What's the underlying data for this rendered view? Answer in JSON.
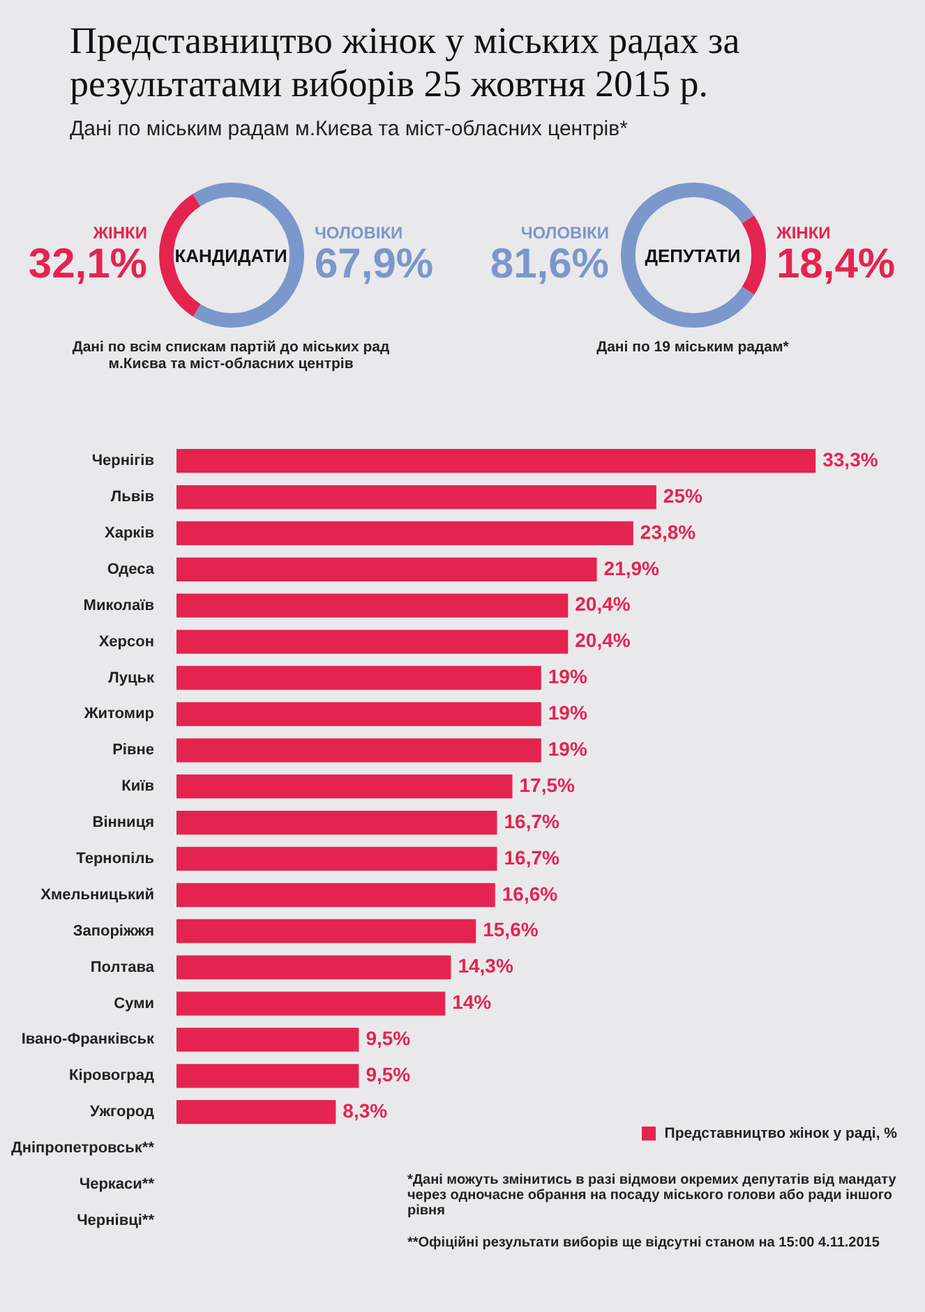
{
  "chart_data": [
    {
      "type": "donut",
      "title": "КАНДИДАТИ",
      "categories": [
        "ЖІНКИ",
        "ЧОЛОВІКИ"
      ],
      "values": [
        32.1,
        67.9
      ],
      "colors": [
        "#e5234f",
        "#7b97cc"
      ],
      "value_labels": [
        "32,1%",
        "67,9%"
      ],
      "annotations": [
        "Дані по всім спискам партій до міських рад м.Києва та міст-обласних центрів"
      ]
    },
    {
      "type": "donut",
      "title": "ДЕПУТАТИ",
      "categories": [
        "ЧОЛОВІКИ",
        "ЖІНКИ"
      ],
      "values": [
        81.6,
        18.4
      ],
      "colors": [
        "#7b97cc",
        "#e5234f"
      ],
      "value_labels": [
        "81,6%",
        "18,4%"
      ],
      "annotations": [
        "Дані по 19 міським радам*"
      ]
    },
    {
      "type": "bar",
      "orientation": "horizontal",
      "title": "Представництво жінок у міських радах за результатами виборів 25 жовтня 2015 р.",
      "subtitle": "Дані по міським радам м.Києва та міст-обласних центрів*",
      "legend": "bottom right",
      "categories": [
        "Чернігів",
        "Львів",
        "Харків",
        "Одеса",
        "Миколаїв",
        "Херсон",
        "Луцьк",
        "Житомир",
        "Рівне",
        "Київ",
        "Вінниця",
        "Тернопіль",
        "Хмельницький",
        "Запоріжжя",
        "Полтава",
        "Суми",
        "Івано-Франківськ",
        "Кіровоград",
        "Ужгород",
        "Дніпропетровськ**",
        "Черкаси**",
        "Чернівці**"
      ],
      "series": [
        {
          "name": "Представництво жінок у раді, %",
          "color": "#e5234f",
          "values": [
            33.3,
            25,
            23.8,
            21.9,
            20.4,
            20.4,
            19,
            19,
            19,
            17.5,
            16.7,
            16.7,
            16.6,
            15.6,
            14.3,
            14,
            9.5,
            9.5,
            8.3,
            null,
            null,
            null
          ],
          "value_labels": [
            "33,3%",
            "25%",
            "23,8%",
            "21,9%",
            "20,4%",
            "20,4%",
            "19%",
            "19%",
            "19%",
            "17,5%",
            "16,7%",
            "16,7%",
            "16,6%",
            "15,6%",
            "14,3%",
            "14%",
            "9,5%",
            "9,5%",
            "8,3%",
            null,
            null,
            null
          ]
        }
      ],
      "annotations": [
        "*Дані можуть змінитись в разі відмови окремих депутатів від мандату через одночасне обрання на посаду міського голови або ради іншого рівня",
        "**Офіційні результати виборів ще відсутні станом на 15:00 4.11.2015"
      ]
    }
  ]
}
